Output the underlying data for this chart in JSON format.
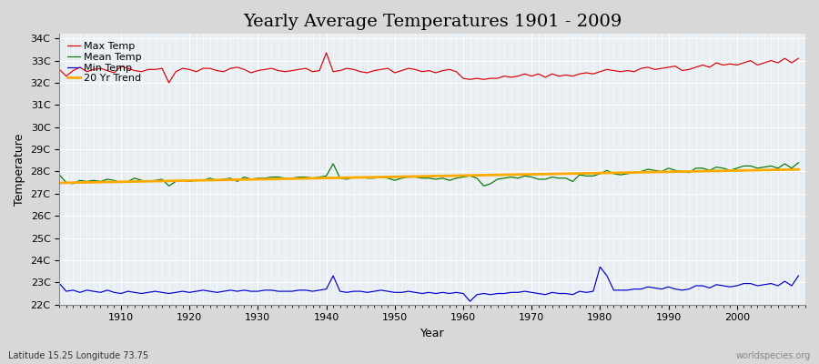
{
  "title": "Yearly Average Temperatures 1901 - 2009",
  "xlabel": "Year",
  "ylabel": "Temperature",
  "footnote_left": "Latitude 15.25 Longitude 73.75",
  "footnote_right": "worldspecies.org",
  "years": [
    1901,
    1902,
    1903,
    1904,
    1905,
    1906,
    1907,
    1908,
    1909,
    1910,
    1911,
    1912,
    1913,
    1914,
    1915,
    1916,
    1917,
    1918,
    1919,
    1920,
    1921,
    1922,
    1923,
    1924,
    1925,
    1926,
    1927,
    1928,
    1929,
    1930,
    1931,
    1932,
    1933,
    1934,
    1935,
    1936,
    1937,
    1938,
    1939,
    1940,
    1941,
    1942,
    1943,
    1944,
    1945,
    1946,
    1947,
    1948,
    1949,
    1950,
    1951,
    1952,
    1953,
    1954,
    1955,
    1956,
    1957,
    1958,
    1959,
    1960,
    1961,
    1962,
    1963,
    1964,
    1965,
    1966,
    1967,
    1968,
    1969,
    1970,
    1971,
    1972,
    1973,
    1974,
    1975,
    1976,
    1977,
    1978,
    1979,
    1980,
    1981,
    1982,
    1983,
    1984,
    1985,
    1986,
    1987,
    1988,
    1989,
    1990,
    1991,
    1992,
    1993,
    1994,
    1995,
    1996,
    1997,
    1998,
    1999,
    2000,
    2001,
    2002,
    2003,
    2004,
    2005,
    2006,
    2007,
    2008,
    2009
  ],
  "max_temp": [
    32.6,
    32.3,
    32.55,
    32.7,
    32.5,
    32.6,
    32.65,
    32.55,
    32.45,
    32.75,
    32.65,
    32.55,
    32.5,
    32.6,
    32.6,
    32.65,
    32.0,
    32.5,
    32.65,
    32.6,
    32.5,
    32.65,
    32.65,
    32.55,
    32.5,
    32.65,
    32.7,
    32.6,
    32.45,
    32.55,
    32.6,
    32.65,
    32.55,
    32.5,
    32.55,
    32.6,
    32.65,
    32.5,
    32.55,
    33.35,
    32.5,
    32.55,
    32.65,
    32.6,
    32.5,
    32.45,
    32.55,
    32.6,
    32.65,
    32.45,
    32.55,
    32.65,
    32.6,
    32.5,
    32.55,
    32.45,
    32.55,
    32.6,
    32.5,
    32.2,
    32.15,
    32.2,
    32.15,
    32.2,
    32.2,
    32.3,
    32.25,
    32.3,
    32.4,
    32.3,
    32.4,
    32.25,
    32.4,
    32.3,
    32.35,
    32.3,
    32.4,
    32.45,
    32.4,
    32.5,
    32.6,
    32.55,
    32.5,
    32.55,
    32.5,
    32.65,
    32.7,
    32.6,
    32.65,
    32.7,
    32.75,
    32.55,
    32.6,
    32.7,
    32.8,
    32.7,
    32.9,
    32.8,
    32.85,
    32.8,
    32.9,
    33.0,
    32.8,
    32.9,
    33.0,
    32.9,
    33.1,
    32.9,
    33.1
  ],
  "mean_temp": [
    27.85,
    27.5,
    27.45,
    27.6,
    27.55,
    27.6,
    27.55,
    27.65,
    27.6,
    27.5,
    27.55,
    27.7,
    27.6,
    27.55,
    27.6,
    27.65,
    27.35,
    27.55,
    27.6,
    27.55,
    27.6,
    27.6,
    27.7,
    27.6,
    27.65,
    27.7,
    27.55,
    27.75,
    27.65,
    27.7,
    27.7,
    27.75,
    27.75,
    27.7,
    27.7,
    27.75,
    27.75,
    27.7,
    27.75,
    27.8,
    28.35,
    27.7,
    27.65,
    27.75,
    27.75,
    27.7,
    27.7,
    27.75,
    27.7,
    27.6,
    27.7,
    27.75,
    27.75,
    27.7,
    27.7,
    27.65,
    27.7,
    27.6,
    27.7,
    27.75,
    27.8,
    27.7,
    27.35,
    27.45,
    27.65,
    27.7,
    27.75,
    27.7,
    27.8,
    27.75,
    27.65,
    27.65,
    27.75,
    27.7,
    27.7,
    27.55,
    27.85,
    27.8,
    27.8,
    27.9,
    28.05,
    27.9,
    27.85,
    27.9,
    27.95,
    28.0,
    28.1,
    28.05,
    28.0,
    28.15,
    28.05,
    28.0,
    27.95,
    28.15,
    28.15,
    28.05,
    28.2,
    28.15,
    28.05,
    28.15,
    28.25,
    28.25,
    28.15,
    28.2,
    28.25,
    28.15,
    28.35,
    28.15,
    28.4
  ],
  "min_temp": [
    22.95,
    22.6,
    22.65,
    22.55,
    22.65,
    22.6,
    22.55,
    22.65,
    22.55,
    22.5,
    22.6,
    22.55,
    22.5,
    22.55,
    22.6,
    22.55,
    22.5,
    22.55,
    22.6,
    22.55,
    22.6,
    22.65,
    22.6,
    22.55,
    22.6,
    22.65,
    22.6,
    22.65,
    22.6,
    22.6,
    22.65,
    22.65,
    22.6,
    22.6,
    22.6,
    22.65,
    22.65,
    22.6,
    22.65,
    22.7,
    23.3,
    22.6,
    22.55,
    22.6,
    22.6,
    22.55,
    22.6,
    22.65,
    22.6,
    22.55,
    22.55,
    22.6,
    22.55,
    22.5,
    22.55,
    22.5,
    22.55,
    22.5,
    22.55,
    22.5,
    22.15,
    22.45,
    22.5,
    22.45,
    22.5,
    22.5,
    22.55,
    22.55,
    22.6,
    22.55,
    22.5,
    22.45,
    22.55,
    22.5,
    22.5,
    22.45,
    22.6,
    22.55,
    22.6,
    23.7,
    23.3,
    22.65,
    22.65,
    22.65,
    22.7,
    22.7,
    22.8,
    22.75,
    22.7,
    22.8,
    22.7,
    22.65,
    22.7,
    22.85,
    22.85,
    22.75,
    22.9,
    22.85,
    22.8,
    22.85,
    22.95,
    22.95,
    22.85,
    22.9,
    22.95,
    22.85,
    23.05,
    22.85,
    23.3
  ],
  "ylim": [
    22.0,
    34.2
  ],
  "yticks": [
    22,
    23,
    24,
    25,
    26,
    27,
    28,
    29,
    30,
    31,
    32,
    33,
    34
  ],
  "ytick_labels": [
    "22C",
    "23C",
    "24C",
    "25C",
    "26C",
    "27C",
    "28C",
    "29C",
    "30C",
    "31C",
    "32C",
    "33C",
    "34C"
  ],
  "xlim": [
    1901,
    2010
  ],
  "xticks": [
    1910,
    1920,
    1930,
    1940,
    1950,
    1960,
    1970,
    1980,
    1990,
    2000
  ],
  "max_color": "#dd0000",
  "mean_color": "#007700",
  "min_color": "#0000cc",
  "trend_color": "#ffaa00",
  "bg_color": "#d8d8d8",
  "plot_bg_color": "#e8eef2",
  "grid_color": "#ffffff",
  "legend_labels": [
    "Max Temp",
    "Mean Temp",
    "Min Temp",
    "20 Yr Trend"
  ],
  "title_fontsize": 14,
  "axis_fontsize": 9,
  "tick_fontsize": 8,
  "legend_fontsize": 8
}
